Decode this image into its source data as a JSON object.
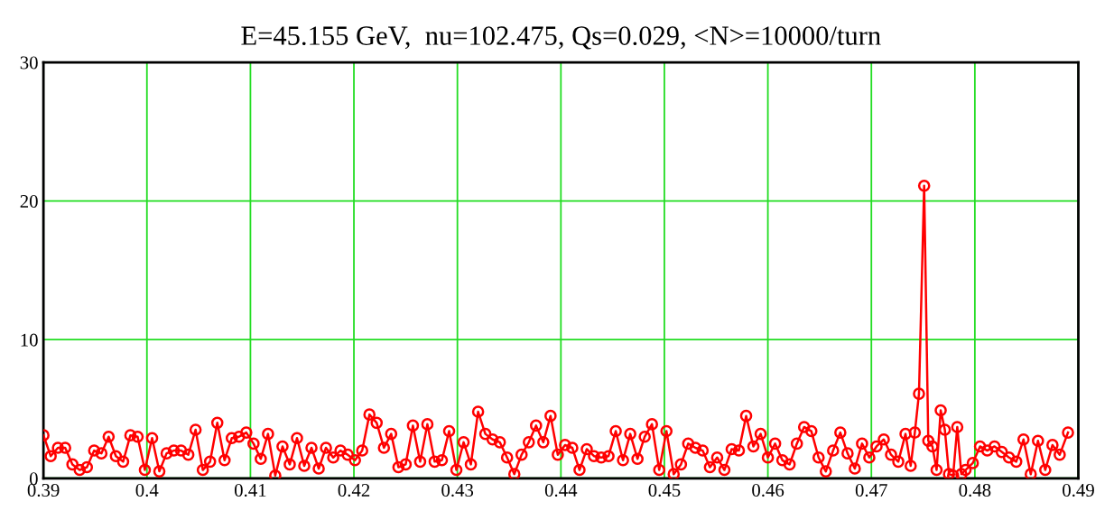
{
  "chart_data": {
    "type": "line",
    "title": "E=45.155 GeV,  nu=102.475, Qs=0.029, <N>=10000/turn",
    "x": [
      0.39,
      0.3907,
      0.3914,
      0.3921,
      0.3928,
      0.3935,
      0.3942,
      0.3949,
      0.3956,
      0.3963,
      0.397,
      0.3977,
      0.3984,
      0.3991,
      0.3998,
      0.4005,
      0.4012,
      0.4019,
      0.4026,
      0.4033,
      0.404,
      0.4047,
      0.4054,
      0.4061,
      0.4068,
      0.4075,
      0.4082,
      0.4089,
      0.4096,
      0.4103,
      0.411,
      0.4117,
      0.4124,
      0.4131,
      0.4138,
      0.4145,
      0.4152,
      0.4159,
      0.4166,
      0.4173,
      0.418,
      0.4187,
      0.4194,
      0.4201,
      0.4208,
      0.4215,
      0.4222,
      0.4229,
      0.4236,
      0.4243,
      0.425,
      0.4257,
      0.4264,
      0.4271,
      0.4278,
      0.4285,
      0.4292,
      0.4299,
      0.4306,
      0.4313,
      0.432,
      0.4327,
      0.4334,
      0.4341,
      0.4348,
      0.4355,
      0.4362,
      0.4369,
      0.4376,
      0.4383,
      0.439,
      0.4397,
      0.4404,
      0.4411,
      0.4418,
      0.4425,
      0.4432,
      0.4439,
      0.4446,
      0.4453,
      0.446,
      0.4467,
      0.4474,
      0.4481,
      0.4488,
      0.4495,
      0.4502,
      0.4509,
      0.4516,
      0.4523,
      0.453,
      0.4537,
      0.4544,
      0.4551,
      0.4558,
      0.4565,
      0.4572,
      0.4579,
      0.4586,
      0.4593,
      0.46,
      0.4607,
      0.4614,
      0.4621,
      0.4628,
      0.4635,
      0.4642,
      0.4649,
      0.4656,
      0.4663,
      0.467,
      0.4677,
      0.4684,
      0.4691,
      0.4698,
      0.4705,
      0.4712,
      0.4719,
      0.4726,
      0.4733,
      0.4738,
      0.4742,
      0.4746,
      0.4751,
      0.4755,
      0.4759,
      0.4763,
      0.4767,
      0.4771,
      0.4775,
      0.4779,
      0.4783,
      0.4787,
      0.4791,
      0.4798,
      0.4805,
      0.4812,
      0.4819,
      0.4826,
      0.4833,
      0.484,
      0.4847,
      0.4854,
      0.4861,
      0.4868,
      0.4875,
      0.4882,
      0.489
    ],
    "series": [
      {
        "color": "#ff0000",
        "values": [
          3.1,
          1.6,
          2.2,
          2.2,
          1.0,
          0.6,
          0.8,
          2.0,
          1.8,
          3.0,
          1.6,
          1.2,
          3.1,
          3.0,
          0.6,
          2.9,
          0.5,
          1.8,
          2.0,
          2.0,
          1.7,
          3.5,
          0.6,
          1.2,
          4.0,
          1.3,
          2.9,
          3.0,
          3.3,
          2.5,
          1.4,
          3.2,
          0.2,
          2.3,
          1.0,
          2.9,
          0.9,
          2.2,
          0.7,
          2.2,
          1.5,
          2.0,
          1.7,
          1.3,
          2.0,
          4.6,
          4.0,
          2.2,
          3.2,
          0.8,
          1.0,
          3.8,
          1.2,
          3.9,
          1.2,
          1.3,
          3.4,
          0.6,
          2.6,
          1.0,
          4.8,
          3.2,
          2.8,
          2.6,
          1.5,
          0.3,
          1.7,
          2.6,
          3.8,
          2.6,
          4.5,
          1.7,
          2.4,
          2.2,
          0.6,
          2.1,
          1.6,
          1.5,
          1.6,
          3.4,
          1.3,
          3.2,
          1.4,
          3.0,
          3.9,
          0.6,
          3.4,
          0.3,
          1.0,
          2.5,
          2.2,
          2.0,
          0.8,
          1.5,
          0.6,
          2.1,
          2.0,
          4.5,
          2.3,
          3.2,
          1.5,
          2.5,
          1.3,
          1.0,
          2.5,
          3.7,
          3.4,
          1.5,
          0.5,
          2.0,
          3.3,
          1.8,
          0.7,
          2.5,
          1.5,
          2.3,
          2.8,
          1.7,
          1.2,
          3.2,
          0.9,
          3.3,
          6.1,
          21.1,
          2.7,
          2.3,
          0.6,
          4.9,
          3.5,
          0.3,
          0.2,
          3.7,
          0.3,
          0.6,
          1.1,
          2.3,
          2.0,
          2.3,
          1.9,
          1.5,
          1.2,
          2.8,
          0.3,
          2.7,
          0.6,
          2.4,
          1.7,
          3.3
        ]
      }
    ],
    "xlim": [
      0.39,
      0.49
    ],
    "ylim": [
      0,
      30
    ],
    "xticks": [
      0.39,
      {
        "value": 0.4,
        "label": "0.4"
      },
      0.41,
      0.42,
      0.43,
      0.44,
      0.45,
      0.46,
      0.47,
      0.48,
      0.49
    ],
    "yticks": [
      0,
      10,
      20,
      30
    ],
    "grid": true,
    "marker": "circle",
    "line_style": "solid",
    "legend": false
  }
}
